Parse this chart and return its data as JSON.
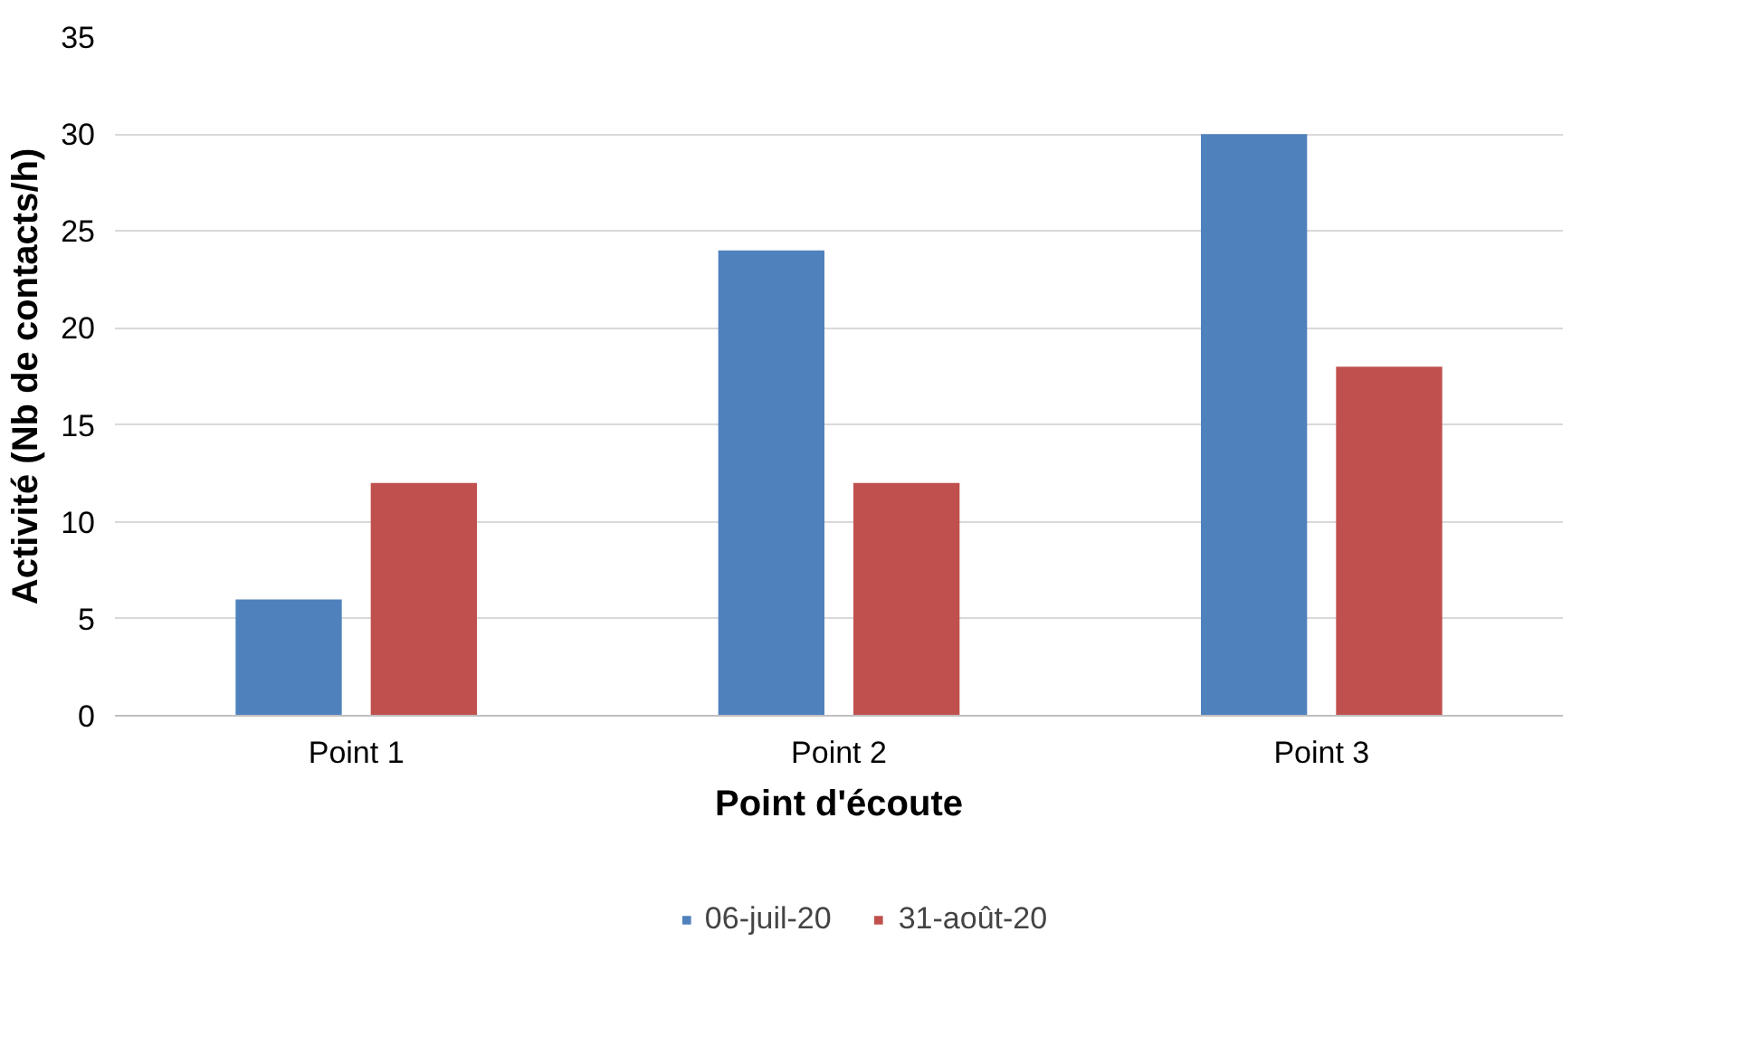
{
  "chart_data": {
    "type": "bar",
    "xlabel": "Point d'écoute",
    "ylabel": "Activité (Nb de contacts/h)",
    "categories": [
      "Point 1",
      "Point 2",
      "Point 3"
    ],
    "series": [
      {
        "name": "06-juil-20",
        "color": "#4f81bd",
        "values": [
          6,
          24,
          30
        ]
      },
      {
        "name": "31-août-20",
        "color": "#c0504d",
        "values": [
          12,
          12,
          18
        ]
      }
    ],
    "ylim": [
      0,
      35
    ],
    "yticks": [
      0,
      5,
      10,
      15,
      20,
      25,
      30,
      35
    ],
    "grid": "y",
    "legend": "bottom"
  }
}
